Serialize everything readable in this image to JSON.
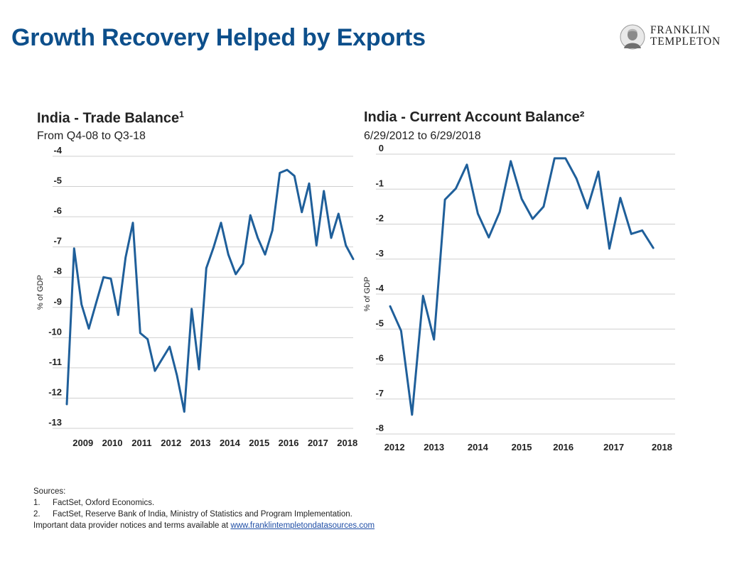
{
  "slide": {
    "title": "Growth Recovery Helped by Exports",
    "logo": {
      "line1": "FRANKLIN",
      "line2": "TEMPLETON"
    }
  },
  "colors": {
    "title": "#0d4f8b",
    "series": "#1f5f9a",
    "grid": "#cfcfcf"
  },
  "chart_data": [
    {
      "type": "line",
      "title": "India - Trade Balance",
      "title_sup": "1",
      "subtitle": "From Q4-08 to Q3-18",
      "ylabel": "% of GDP",
      "ylim": [
        -13,
        -4
      ],
      "yticks": [
        -4,
        -5,
        -6,
        -7,
        -8,
        -9,
        -10,
        -11,
        -12,
        -13
      ],
      "xlim": [
        2008.75,
        2018.5
      ],
      "xticks": [
        {
          "label": "2009",
          "x": 2009.3
        },
        {
          "label": "2010",
          "x": 2010.3
        },
        {
          "label": "2011",
          "x": 2011.3
        },
        {
          "label": "2012",
          "x": 2012.3
        },
        {
          "label": "2013",
          "x": 2013.3
        },
        {
          "label": "2014",
          "x": 2014.3
        },
        {
          "label": "2015",
          "x": 2015.3
        },
        {
          "label": "2016",
          "x": 2016.3
        },
        {
          "label": "2017",
          "x": 2017.3
        },
        {
          "label": "2018",
          "x": 2018.3
        }
      ],
      "grid": true,
      "series": [
        {
          "color": "#1f5f9a",
          "points": [
            [
              2008.75,
              -12.2
            ],
            [
              2009.0,
              -7.05
            ],
            [
              2009.25,
              -8.9
            ],
            [
              2009.5,
              -9.7
            ],
            [
              2009.75,
              -8.85
            ],
            [
              2010.0,
              -8.0
            ],
            [
              2010.25,
              -8.05
            ],
            [
              2010.5,
              -9.25
            ],
            [
              2010.75,
              -7.35
            ],
            [
              2011.0,
              -6.2
            ],
            [
              2011.25,
              -9.85
            ],
            [
              2011.5,
              -10.05
            ],
            [
              2011.75,
              -11.1
            ],
            [
              2012.0,
              -10.7
            ],
            [
              2012.25,
              -10.3
            ],
            [
              2012.5,
              -11.25
            ],
            [
              2012.75,
              -12.45
            ],
            [
              2013.0,
              -9.05
            ],
            [
              2013.25,
              -11.05
            ],
            [
              2013.5,
              -7.7
            ],
            [
              2013.75,
              -7.0
            ],
            [
              2014.0,
              -6.2
            ],
            [
              2014.25,
              -7.25
            ],
            [
              2014.5,
              -7.9
            ],
            [
              2014.75,
              -7.55
            ],
            [
              2015.0,
              -5.95
            ],
            [
              2015.25,
              -6.7
            ],
            [
              2015.5,
              -7.25
            ],
            [
              2015.75,
              -6.45
            ],
            [
              2016.0,
              -4.55
            ],
            [
              2016.25,
              -4.45
            ],
            [
              2016.5,
              -4.65
            ],
            [
              2016.75,
              -5.85
            ],
            [
              2017.0,
              -4.9
            ],
            [
              2017.25,
              -6.95
            ],
            [
              2017.5,
              -5.15
            ],
            [
              2017.75,
              -6.7
            ],
            [
              2018.0,
              -5.9
            ],
            [
              2018.25,
              -6.95
            ],
            [
              2018.5,
              -7.4
            ]
          ]
        }
      ]
    },
    {
      "type": "line",
      "title": "India - Current Account Balance",
      "title_sup": "²",
      "subtitle": "6/29/2012 to 6/29/2018",
      "ylabel": "% of GDP",
      "ylim": [
        -8,
        0
      ],
      "yticks": [
        0,
        -1,
        -2,
        -3,
        -4,
        -5,
        -6,
        -7,
        -8
      ],
      "xlim": [
        2012.0,
        2018.5
      ],
      "xticks": [
        {
          "label": "2012",
          "x": 2012.1
        },
        {
          "label": "2013",
          "x": 2013.0
        },
        {
          "label": "2014",
          "x": 2014.0
        },
        {
          "label": "2015",
          "x": 2015.0
        },
        {
          "label": "2016",
          "x": 2015.95
        },
        {
          "label": "2017",
          "x": 2017.1
        },
        {
          "label": "2018",
          "x": 2018.2
        }
      ],
      "grid": true,
      "series": [
        {
          "color": "#1f5f9a",
          "points": [
            [
              2012.0,
              -4.35
            ],
            [
              2012.25,
              -5.05
            ],
            [
              2012.5,
              -7.45
            ],
            [
              2012.75,
              -4.05
            ],
            [
              2013.0,
              -5.3
            ],
            [
              2013.25,
              -1.3
            ],
            [
              2013.5,
              -0.98
            ],
            [
              2013.75,
              -0.3
            ],
            [
              2014.0,
              -1.7
            ],
            [
              2014.25,
              -2.38
            ],
            [
              2014.5,
              -1.65
            ],
            [
              2014.75,
              -0.2
            ],
            [
              2015.0,
              -1.28
            ],
            [
              2015.25,
              -1.85
            ],
            [
              2015.5,
              -1.5
            ],
            [
              2015.75,
              -0.12
            ],
            [
              2016.0,
              -0.12
            ],
            [
              2016.25,
              -0.7
            ],
            [
              2016.5,
              -1.55
            ],
            [
              2016.75,
              -0.5
            ],
            [
              2017.0,
              -2.7
            ],
            [
              2017.25,
              -1.25
            ],
            [
              2017.5,
              -2.28
            ],
            [
              2017.75,
              -2.18
            ],
            [
              2018.0,
              -2.68
            ]
          ]
        }
      ]
    }
  ],
  "sources": {
    "heading": "Sources:",
    "items": [
      {
        "num": "1.",
        "text": "FactSet, Oxford Economics."
      },
      {
        "num": "2.",
        "text": "FactSet, Reserve Bank of India, Ministry of Statistics and Program Implementation."
      }
    ],
    "notice_prefix": "Important data provider notices and terms available at ",
    "notice_link": "www.franklintempletondatasources.com"
  }
}
